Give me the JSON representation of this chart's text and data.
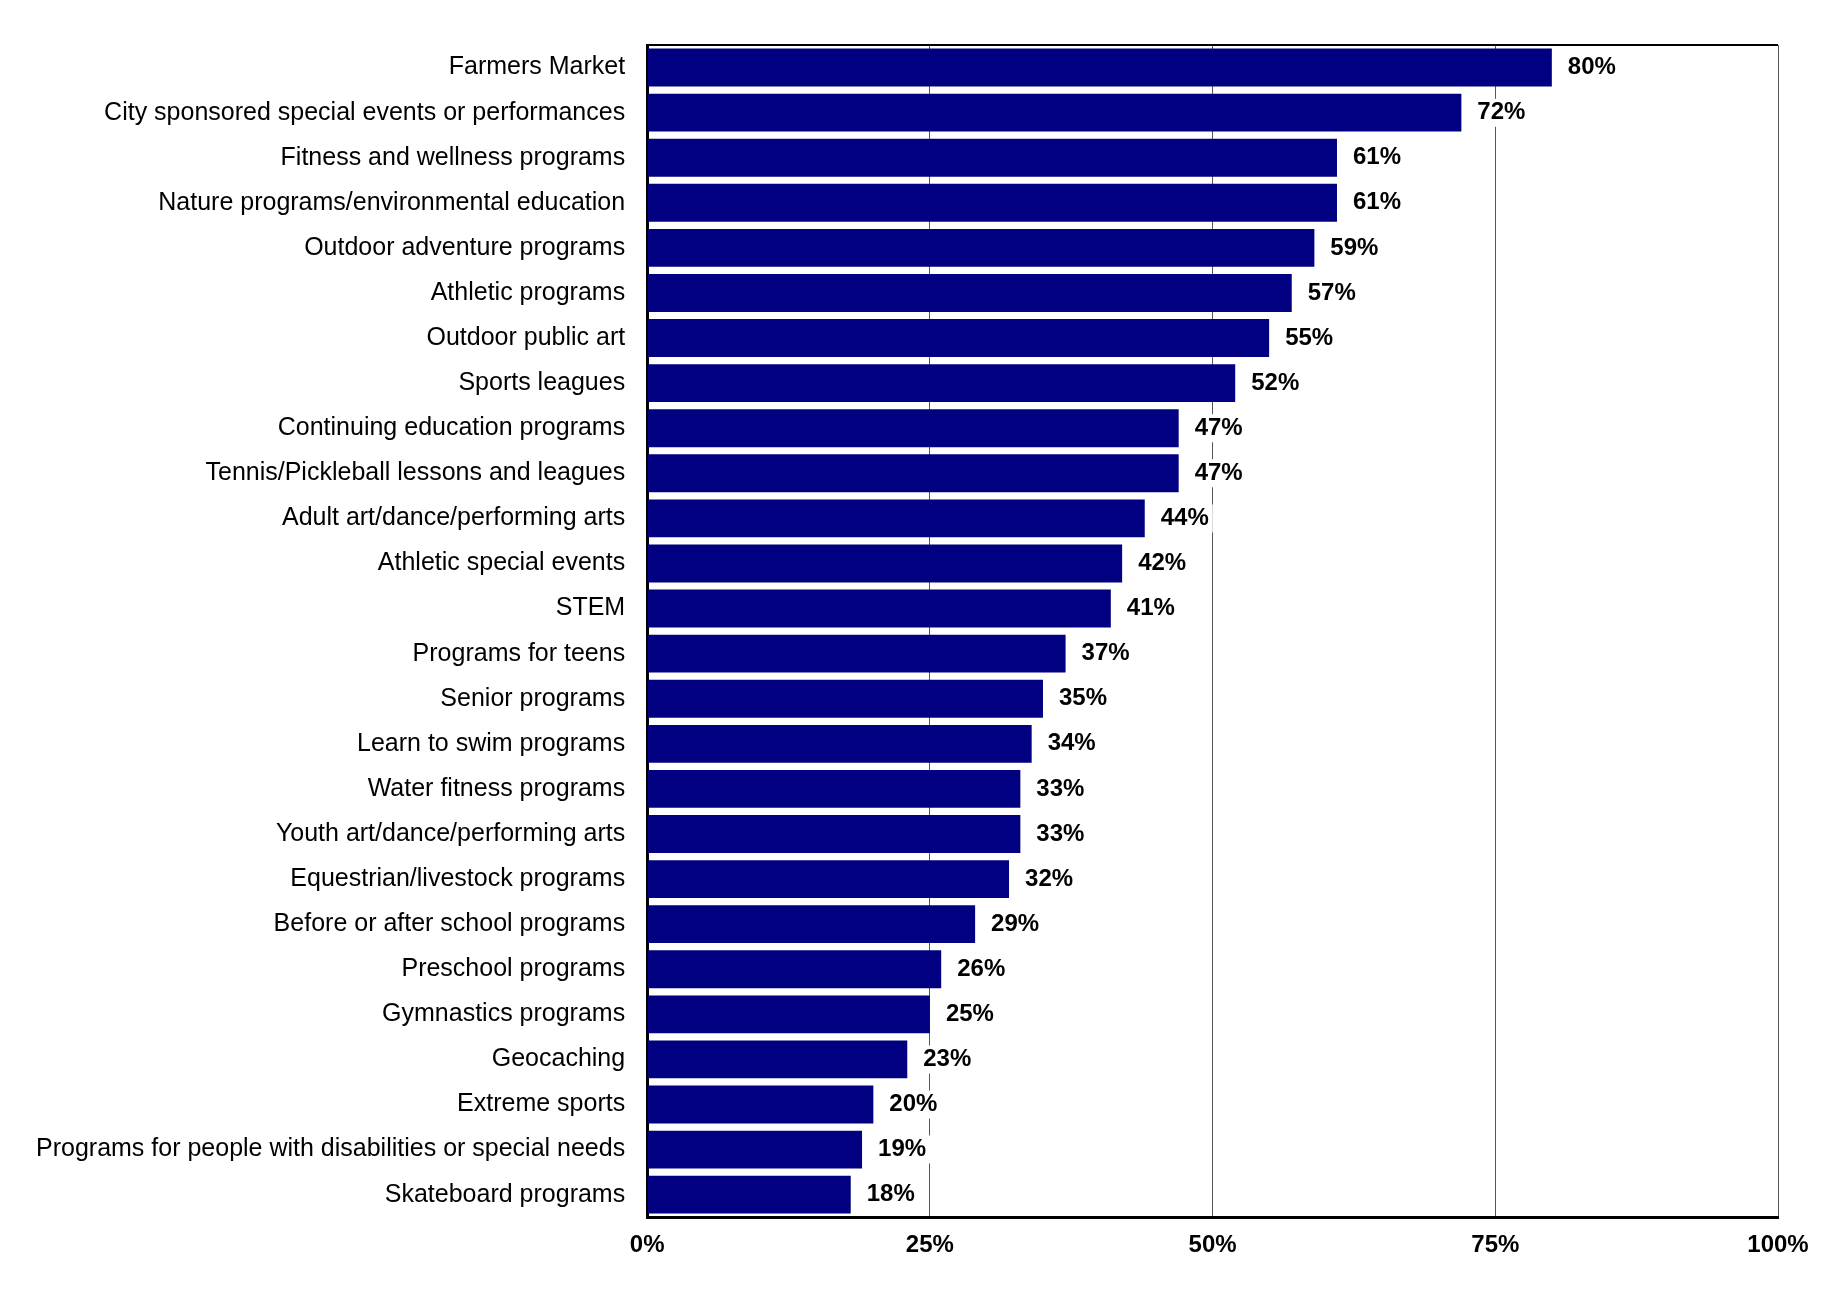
{
  "chart_data": {
    "type": "bar",
    "orientation": "horizontal",
    "categories": [
      "Farmers Market",
      "City sponsored special events or performances",
      "Fitness and wellness programs",
      "Nature programs/environmental education",
      "Outdoor adventure programs",
      "Athletic programs",
      "Outdoor public art",
      "Sports leagues",
      "Continuing education programs",
      "Tennis/Pickleball lessons and leagues",
      "Adult art/dance/performing arts",
      "Athletic special events",
      "STEM",
      "Programs for teens",
      "Senior programs",
      "Learn to swim programs",
      "Water fitness programs",
      "Youth art/dance/performing arts",
      "Equestrian/livestock programs",
      "Before or after school programs",
      "Preschool programs",
      "Gymnastics programs",
      "Geocaching",
      "Extreme sports",
      "Programs for people with disabilities or special needs",
      "Skateboard programs"
    ],
    "values": [
      80,
      72,
      61,
      61,
      59,
      57,
      55,
      52,
      47,
      47,
      44,
      42,
      41,
      37,
      35,
      34,
      33,
      33,
      32,
      29,
      26,
      25,
      23,
      20,
      19,
      18
    ],
    "value_labels": [
      "80%",
      "72%",
      "61%",
      "61%",
      "59%",
      "57%",
      "55%",
      "52%",
      "47%",
      "47%",
      "44%",
      "42%",
      "41%",
      "37%",
      "35%",
      "34%",
      "33%",
      "33%",
      "32%",
      "29%",
      "26%",
      "25%",
      "23%",
      "20%",
      "19%",
      "18%"
    ],
    "color": "#000080",
    "xlim": [
      0,
      100
    ],
    "xticks": [
      {
        "value": 0,
        "label": "0%"
      },
      {
        "value": 25,
        "label": "25%"
      },
      {
        "value": 50,
        "label": "50%"
      },
      {
        "value": 75,
        "label": "75%"
      },
      {
        "value": 100,
        "label": "100%"
      }
    ],
    "grid": "x"
  }
}
